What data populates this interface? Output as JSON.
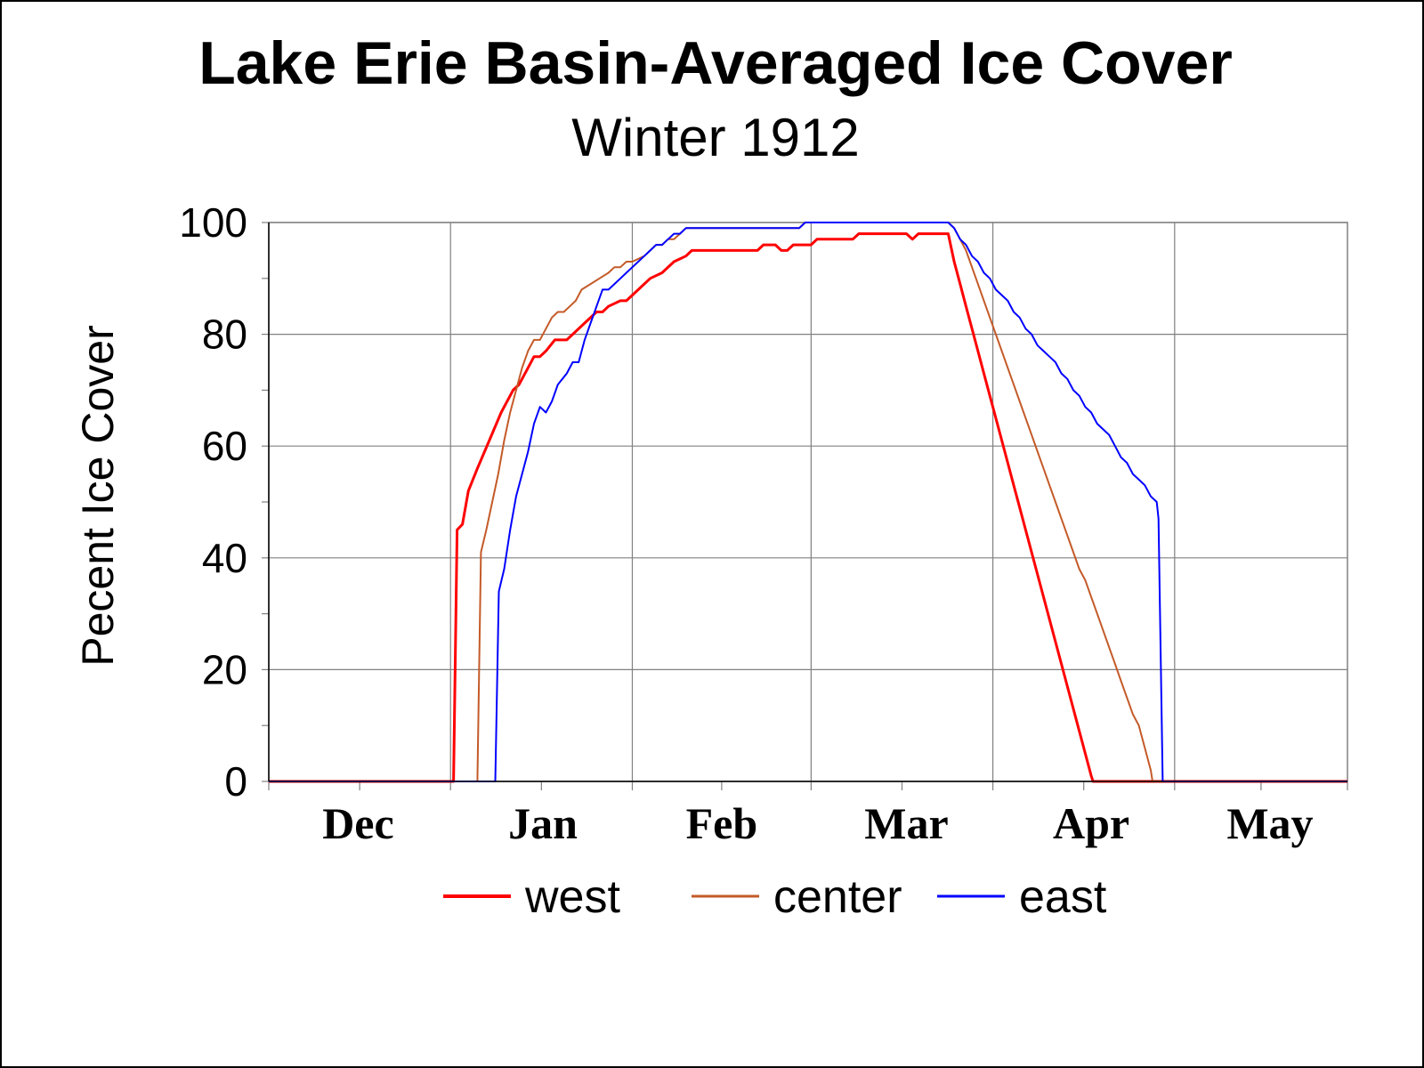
{
  "chart_data": {
    "type": "line",
    "title": "Lake Erie Basin-Averaged Ice Cover",
    "subtitle": "Winter 1912",
    "ylabel": "Pecent Ice Cover",
    "xlabel": "",
    "ylim": [
      0,
      100
    ],
    "yticks": [
      "0",
      "20",
      "40",
      "60",
      "80",
      "100"
    ],
    "xlim": [
      0,
      181
    ],
    "month_labels": [
      {
        "label": "Dec",
        "day": 15
      },
      {
        "label": "Jan",
        "day": 46
      },
      {
        "label": "Feb",
        "day": 76
      },
      {
        "label": "Mar",
        "day": 107
      },
      {
        "label": "Apr",
        "day": 138
      },
      {
        "label": "May",
        "day": 168
      }
    ],
    "month_boundaries": [
      30.5,
      61,
      91,
      121.5,
      152
    ],
    "grid": true,
    "legend_position": "bottom",
    "series": [
      {
        "name": "west",
        "color": "#ff0000",
        "width": 3,
        "points": [
          [
            0,
            0
          ],
          [
            31,
            0
          ],
          [
            31.6,
            45
          ],
          [
            32.5,
            46
          ],
          [
            33.5,
            52
          ],
          [
            35,
            56
          ],
          [
            37,
            61
          ],
          [
            39,
            66
          ],
          [
            41,
            70
          ],
          [
            42,
            71
          ],
          [
            43.5,
            74
          ],
          [
            44.5,
            76
          ],
          [
            45.5,
            76
          ],
          [
            46.5,
            77
          ],
          [
            48,
            79
          ],
          [
            50,
            79
          ],
          [
            51,
            80
          ],
          [
            53,
            82
          ],
          [
            55,
            84
          ],
          [
            56,
            84
          ],
          [
            57,
            85
          ],
          [
            59,
            86
          ],
          [
            60,
            86
          ],
          [
            62,
            88
          ],
          [
            64,
            90
          ],
          [
            66,
            91
          ],
          [
            68,
            93
          ],
          [
            70,
            94
          ],
          [
            71,
            95
          ],
          [
            74,
            95
          ],
          [
            78,
            95
          ],
          [
            82,
            95
          ],
          [
            83,
            96
          ],
          [
            85,
            96
          ],
          [
            86,
            95
          ],
          [
            87,
            95
          ],
          [
            88,
            96
          ],
          [
            91,
            96
          ],
          [
            92,
            97
          ],
          [
            98,
            97
          ],
          [
            99,
            98
          ],
          [
            107,
            98
          ],
          [
            108,
            97
          ],
          [
            109,
            98
          ],
          [
            114,
            98
          ],
          [
            115,
            93
          ],
          [
            116,
            89
          ],
          [
            117,
            85
          ],
          [
            118,
            81
          ],
          [
            119,
            77
          ],
          [
            120,
            73
          ],
          [
            121,
            69
          ],
          [
            122,
            65
          ],
          [
            123,
            61
          ],
          [
            124,
            57
          ],
          [
            125,
            53
          ],
          [
            126,
            49
          ],
          [
            127,
            45
          ],
          [
            128,
            41
          ],
          [
            129,
            37
          ],
          [
            130,
            33
          ],
          [
            131,
            29
          ],
          [
            132,
            25
          ],
          [
            133,
            21
          ],
          [
            134,
            17
          ],
          [
            135,
            13
          ],
          [
            136,
            9
          ],
          [
            137,
            5
          ],
          [
            138,
            1
          ],
          [
            138.3,
            0
          ],
          [
            181,
            0
          ]
        ]
      },
      {
        "name": "center",
        "color": "#c45a28",
        "width": 2,
        "points": [
          [
            0,
            0
          ],
          [
            35,
            0
          ],
          [
            35.6,
            41
          ],
          [
            36.5,
            45
          ],
          [
            37.5,
            50
          ],
          [
            38.5,
            55
          ],
          [
            39.5,
            61
          ],
          [
            40.5,
            66
          ],
          [
            41.5,
            70
          ],
          [
            42.5,
            74
          ],
          [
            43.5,
            77
          ],
          [
            44.5,
            79
          ],
          [
            45.5,
            79
          ],
          [
            46.5,
            81
          ],
          [
            47.5,
            83
          ],
          [
            48.5,
            84
          ],
          [
            49.5,
            84
          ],
          [
            50.5,
            85
          ],
          [
            51.5,
            86
          ],
          [
            52.5,
            88
          ],
          [
            54,
            89
          ],
          [
            55.5,
            90
          ],
          [
            57,
            91
          ],
          [
            58,
            92
          ],
          [
            59,
            92
          ],
          [
            60,
            93
          ],
          [
            61,
            93
          ],
          [
            63,
            94
          ],
          [
            65,
            96
          ],
          [
            66,
            96
          ],
          [
            67,
            97
          ],
          [
            68,
            97
          ],
          [
            69,
            98
          ],
          [
            70,
            99
          ],
          [
            74,
            99
          ],
          [
            85,
            99
          ],
          [
            89,
            99
          ],
          [
            90,
            100
          ],
          [
            114,
            100
          ],
          [
            115,
            99
          ],
          [
            116,
            97
          ],
          [
            117,
            95
          ],
          [
            118,
            92
          ],
          [
            119,
            89
          ],
          [
            120,
            86
          ],
          [
            121,
            83
          ],
          [
            122,
            80
          ],
          [
            123,
            77
          ],
          [
            124,
            74
          ],
          [
            125,
            71
          ],
          [
            126,
            68
          ],
          [
            127,
            65
          ],
          [
            128,
            62
          ],
          [
            129,
            59
          ],
          [
            130,
            56
          ],
          [
            131,
            53
          ],
          [
            132,
            50
          ],
          [
            133,
            47
          ],
          [
            134,
            44
          ],
          [
            135,
            41
          ],
          [
            136,
            38
          ],
          [
            137,
            36
          ],
          [
            138,
            33
          ],
          [
            139,
            30
          ],
          [
            140,
            27
          ],
          [
            141,
            24
          ],
          [
            142,
            21
          ],
          [
            143,
            18
          ],
          [
            144,
            15
          ],
          [
            145,
            12
          ],
          [
            146,
            10
          ],
          [
            147,
            6
          ],
          [
            148,
            2
          ],
          [
            148.3,
            0
          ],
          [
            181,
            0
          ]
        ]
      },
      {
        "name": "east",
        "color": "#0000ff",
        "width": 2,
        "points": [
          [
            0,
            0
          ],
          [
            38,
            0
          ],
          [
            38.6,
            34
          ],
          [
            39.5,
            38
          ],
          [
            40.5,
            45
          ],
          [
            41.5,
            51
          ],
          [
            42.5,
            55
          ],
          [
            43.5,
            59
          ],
          [
            44.5,
            64
          ],
          [
            45.5,
            67
          ],
          [
            46.5,
            66
          ],
          [
            47.5,
            68
          ],
          [
            48.5,
            71
          ],
          [
            50,
            73
          ],
          [
            51,
            75
          ],
          [
            52,
            75
          ],
          [
            53,
            79
          ],
          [
            54,
            82
          ],
          [
            55,
            85
          ],
          [
            56,
            88
          ],
          [
            57,
            88
          ],
          [
            58,
            89
          ],
          [
            59,
            90
          ],
          [
            60,
            91
          ],
          [
            61,
            92
          ],
          [
            62,
            93
          ],
          [
            63,
            94
          ],
          [
            64,
            95
          ],
          [
            65,
            96
          ],
          [
            66,
            96
          ],
          [
            67,
            97
          ],
          [
            68,
            98
          ],
          [
            69,
            98
          ],
          [
            70,
            99
          ],
          [
            75,
            99
          ],
          [
            80,
            99
          ],
          [
            85,
            99
          ],
          [
            89,
            99
          ],
          [
            90,
            100
          ],
          [
            114,
            100
          ],
          [
            115,
            99
          ],
          [
            116,
            97
          ],
          [
            117,
            96
          ],
          [
            118,
            94
          ],
          [
            119,
            93
          ],
          [
            120,
            91
          ],
          [
            121,
            90
          ],
          [
            122,
            88
          ],
          [
            123,
            87
          ],
          [
            124,
            86
          ],
          [
            125,
            84
          ],
          [
            126,
            83
          ],
          [
            127,
            81
          ],
          [
            128,
            80
          ],
          [
            129,
            78
          ],
          [
            130,
            77
          ],
          [
            131,
            76
          ],
          [
            132,
            75
          ],
          [
            133,
            73
          ],
          [
            134,
            72
          ],
          [
            135,
            70
          ],
          [
            136,
            69
          ],
          [
            137,
            67
          ],
          [
            138,
            66
          ],
          [
            139,
            64
          ],
          [
            140,
            63
          ],
          [
            141,
            62
          ],
          [
            142,
            60
          ],
          [
            143,
            58
          ],
          [
            144,
            57
          ],
          [
            145,
            55
          ],
          [
            146,
            54
          ],
          [
            147,
            53
          ],
          [
            148,
            51
          ],
          [
            149,
            50
          ],
          [
            149.3,
            47
          ],
          [
            150,
            0
          ],
          [
            181,
            0
          ]
        ]
      }
    ]
  }
}
